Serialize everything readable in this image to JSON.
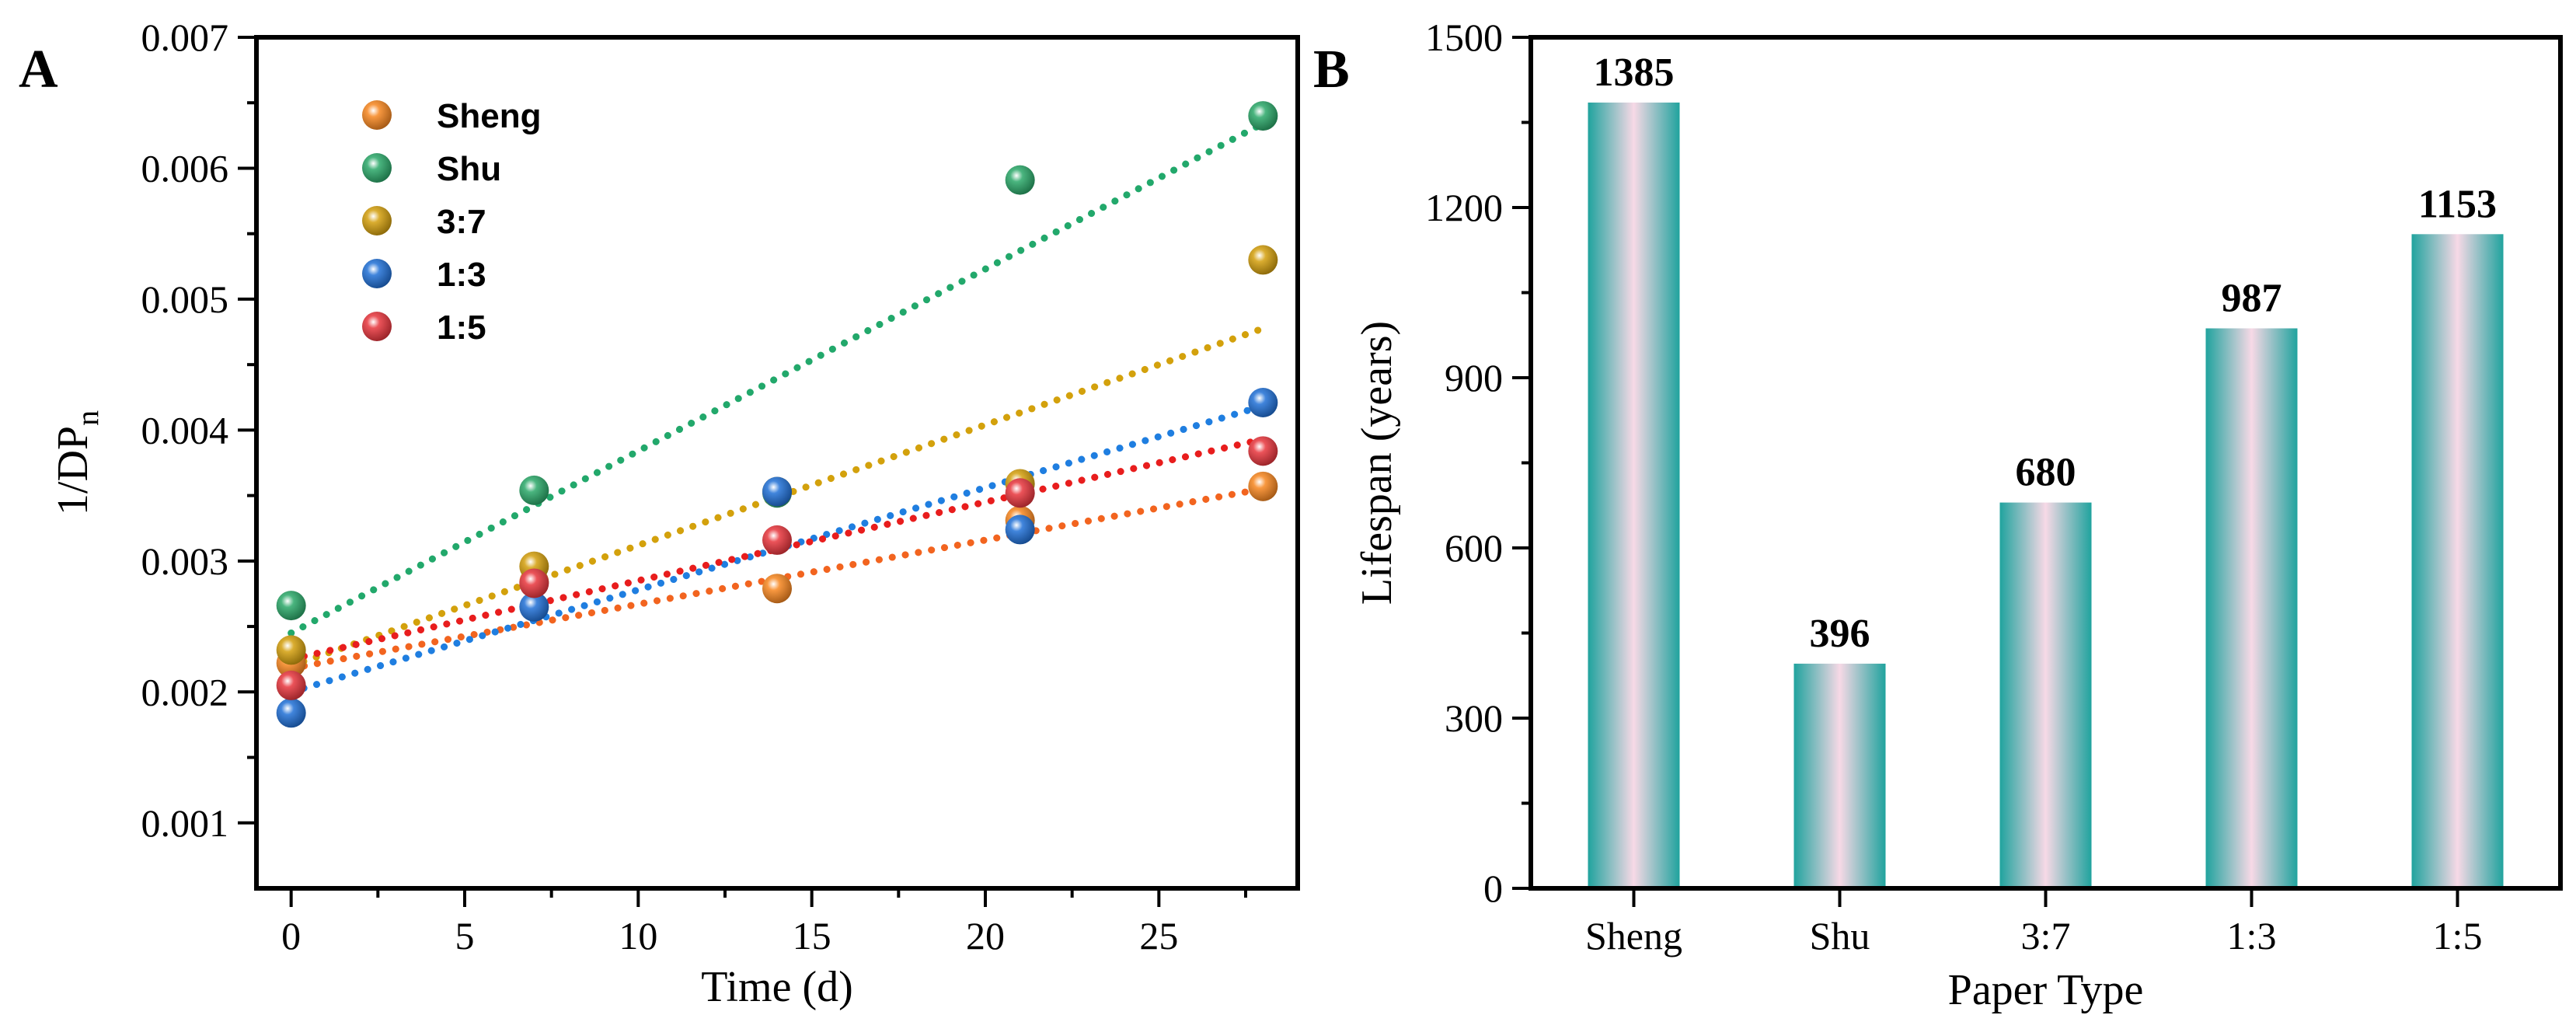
{
  "chart_data": [
    {
      "type": "scatter",
      "panel_label": "A",
      "xlabel": "Time (d)",
      "ylabel": "1/DP",
      "ylabel_subscript": "n",
      "xlim": [
        -1,
        29
      ],
      "ylim": [
        0.0005,
        0.007
      ],
      "x_ticks": [
        "0",
        "5",
        "10",
        "15",
        "20",
        "25"
      ],
      "y_ticks": [
        "0.001",
        "0.002",
        "0.003",
        "0.004",
        "0.005",
        "0.006",
        "0.007"
      ],
      "x_tick_values": [
        0,
        5,
        10,
        15,
        20,
        25
      ],
      "y_tick_values": [
        0.001,
        0.002,
        0.003,
        0.004,
        0.005,
        0.006,
        0.007
      ],
      "trendlines": true,
      "legend_position": "top-left",
      "series": [
        {
          "name": "Sheng",
          "color": "#f7861e",
          "line_color": "#f2641f",
          "x": [
            0,
            7,
            14,
            21,
            28
          ],
          "y": [
            0.00222,
            0.00284,
            0.00279,
            0.00331,
            0.00357
          ],
          "fit": [
            0.00218,
            4.9e-05
          ]
        },
        {
          "name": "Shu",
          "color": "#2aa868",
          "line_color": "#22a86b",
          "x": [
            0,
            7,
            14,
            21,
            28
          ],
          "y": [
            0.00266,
            0.00354,
            0.00352,
            0.00591,
            0.0064
          ],
          "fit": [
            0.00245,
            0.000139
          ]
        },
        {
          "name": "3:7",
          "color": "#d39e0c",
          "line_color": "#d3a10c",
          "x": [
            0,
            7,
            14,
            21,
            28
          ],
          "y": [
            0.00232,
            0.00296,
            0.00353,
            0.00359,
            0.0053
          ],
          "fit": [
            0.0022,
            9.2e-05
          ]
        },
        {
          "name": "1:3",
          "color": "#1f6fd6",
          "line_color": "#1f7ee0",
          "x": [
            0,
            7,
            14,
            21,
            28
          ],
          "y": [
            0.00184,
            0.00265,
            0.00353,
            0.00324,
            0.00421
          ],
          "fit": [
            0.002,
            7.8e-05
          ]
        },
        {
          "name": "1:5",
          "color": "#e8353c",
          "line_color": "#e81d1d",
          "x": [
            0,
            7,
            14,
            21,
            28
          ],
          "y": [
            0.00205,
            0.00283,
            0.00316,
            0.00352,
            0.00384
          ],
          "fit": [
            0.00225,
            6e-05
          ]
        }
      ]
    },
    {
      "type": "bar",
      "panel_label": "B",
      "xlabel": "Paper Type",
      "ylabel": "Lifespan (years)",
      "ylim": [
        0,
        1500
      ],
      "y_ticks": [
        "0",
        "300",
        "600",
        "900",
        "1200",
        "1500"
      ],
      "y_tick_values": [
        0,
        300,
        600,
        900,
        1200,
        1500
      ],
      "categories": [
        "Sheng",
        "Shu",
        "3:7",
        "1:3",
        "1:5"
      ],
      "values": [
        1385,
        396,
        680,
        987,
        1153
      ],
      "value_labels": [
        "1385",
        "396",
        "680",
        "987",
        "1153"
      ],
      "bar_colors": {
        "edge": "#20a39e",
        "center": "#f7d9e6"
      }
    }
  ]
}
